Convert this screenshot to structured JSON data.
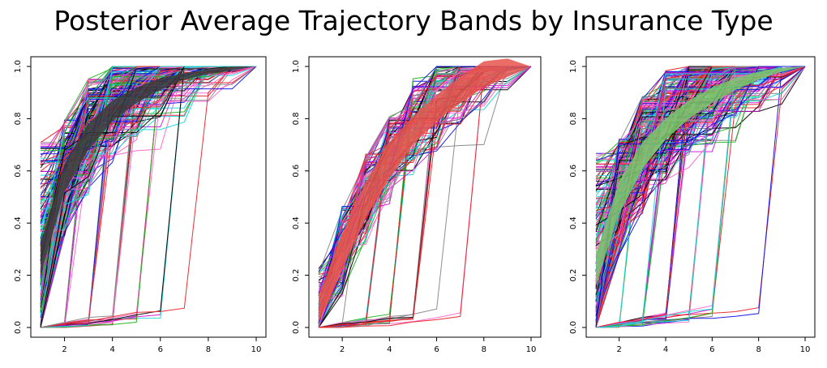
{
  "title": "Posterior Average Trajectory Bands by Insurance Type",
  "colors": {
    "band_1": "#3a3a3a",
    "band_2": "#e8554b",
    "band_3": "#7ac96a",
    "palette": [
      "#000000",
      "#e8232a",
      "#22b422",
      "#1414e6",
      "#18d8d8",
      "#d418d4",
      "#ff66cc",
      "#888888"
    ]
  },
  "chart_data": [
    {
      "type": "line",
      "description_of_series": "many individual step-like trajectories (spaghetti plot) with a shaded posterior average band",
      "x_ticks": [
        2,
        4,
        6,
        8,
        10
      ],
      "y_ticks": [
        "0.0",
        "0.2",
        "0.4",
        "0.6",
        "0.8",
        "1.0"
      ],
      "xlim": [
        1,
        10
      ],
      "ylim": [
        0,
        1
      ],
      "band": {
        "x": [
          1,
          2,
          3,
          4,
          5,
          6,
          7,
          8,
          9,
          10
        ],
        "lower": [
          0.2,
          0.52,
          0.68,
          0.79,
          0.86,
          0.91,
          0.95,
          0.97,
          0.985,
          1.0
        ],
        "upper": [
          0.32,
          0.63,
          0.78,
          0.87,
          0.92,
          0.955,
          0.975,
          0.99,
          1.0,
          1.0
        ],
        "color": "#3a3a3a"
      },
      "n_trajectories": 240
    },
    {
      "type": "line",
      "x_ticks": [
        2,
        4,
        6,
        8,
        10
      ],
      "y_ticks": [
        "0.0",
        "0.2",
        "0.4",
        "0.6",
        "0.8",
        "1.0"
      ],
      "xlim": [
        1,
        10
      ],
      "ylim": [
        0,
        1
      ],
      "band": {
        "x": [
          1,
          2,
          3,
          4,
          5,
          6,
          7,
          8,
          9,
          10
        ],
        "lower": [
          0.02,
          0.22,
          0.42,
          0.57,
          0.7,
          0.79,
          0.86,
          0.92,
          0.96,
          1.0
        ],
        "upper": [
          0.12,
          0.36,
          0.56,
          0.71,
          0.81,
          0.89,
          0.96,
          1.02,
          1.03,
          1.0
        ],
        "color": "#e8554b"
      },
      "n_trajectories": 120
    },
    {
      "type": "line",
      "x_ticks": [
        2,
        4,
        6,
        8,
        10
      ],
      "y_ticks": [
        "0.0",
        "0.2",
        "0.4",
        "0.6",
        "0.8",
        "1.0"
      ],
      "xlim": [
        1,
        10
      ],
      "ylim": [
        0,
        1
      ],
      "band": {
        "x": [
          1,
          2,
          3,
          4,
          5,
          6,
          7,
          8,
          9,
          10
        ],
        "lower": [
          0.16,
          0.44,
          0.61,
          0.72,
          0.8,
          0.86,
          0.91,
          0.95,
          0.98,
          1.0
        ],
        "upper": [
          0.28,
          0.56,
          0.71,
          0.8,
          0.87,
          0.92,
          0.955,
          0.98,
          0.995,
          1.0
        ],
        "color": "#7ac96a"
      },
      "n_trajectories": 260
    }
  ]
}
